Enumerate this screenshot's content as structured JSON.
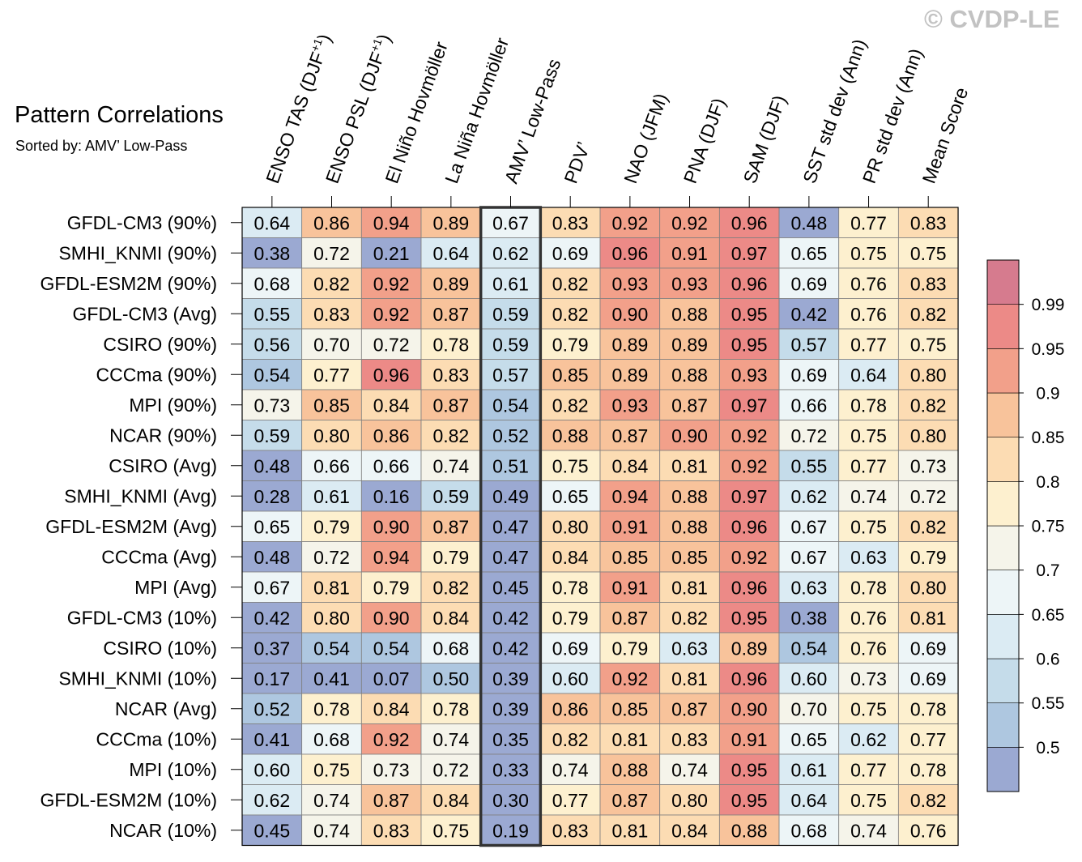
{
  "copyright": "© CVDP-LE",
  "chart_data": {
    "type": "heatmap",
    "title": "Pattern Correlations",
    "subtitle": "Sorted by: AMV’ Low-Pass",
    "highlight_column": "AMV’ Low-Pass",
    "columns": [
      {
        "text": "ENSO TAS (DJF",
        "sup": "+1",
        "tail": ")"
      },
      {
        "text": "ENSO PSL (DJF",
        "sup": "+1",
        "tail": ")"
      },
      {
        "text": "El Niño Hovmöller",
        "sup": "",
        "tail": ""
      },
      {
        "text": "La Niña Hovmöller",
        "sup": "",
        "tail": ""
      },
      {
        "text": "AMV’ Low-Pass",
        "sup": "",
        "tail": ""
      },
      {
        "text": "PDV’",
        "sup": "",
        "tail": ""
      },
      {
        "text": "NAO (JFM)",
        "sup": "",
        "tail": ""
      },
      {
        "text": "PNA (DJF)",
        "sup": "",
        "tail": ""
      },
      {
        "text": "SAM (DJF)",
        "sup": "",
        "tail": ""
      },
      {
        "text": "SST std dev (Ann)",
        "sup": "",
        "tail": ""
      },
      {
        "text": "PR std dev (Ann)",
        "sup": "",
        "tail": ""
      },
      {
        "text": "Mean Score",
        "sup": "",
        "tail": ""
      }
    ],
    "rows": [
      "GFDL-CM3 (90%)",
      "SMHI_KNMI (90%)",
      "GFDL-ESM2M (90%)",
      "GFDL-CM3 (Avg)",
      "CSIRO (90%)",
      "CCCma (90%)",
      "MPI (90%)",
      "NCAR (90%)",
      "CSIRO (Avg)",
      "SMHI_KNMI (Avg)",
      "GFDL-ESM2M (Avg)",
      "CCCma (Avg)",
      "MPI (Avg)",
      "GFDL-CM3 (10%)",
      "CSIRO (10%)",
      "SMHI_KNMI (10%)",
      "NCAR (Avg)",
      "CCCma (10%)",
      "MPI (10%)",
      "GFDL-ESM2M (10%)",
      "NCAR (10%)"
    ],
    "values": [
      [
        "0.64",
        "0.86",
        "0.94",
        "0.89",
        "0.67",
        "0.83",
        "0.92",
        "0.92",
        "0.96",
        "0.48",
        "0.77",
        "0.83"
      ],
      [
        "0.38",
        "0.72",
        "0.21",
        "0.64",
        "0.62",
        "0.69",
        "0.96",
        "0.91",
        "0.97",
        "0.65",
        "0.75",
        "0.75"
      ],
      [
        "0.68",
        "0.82",
        "0.92",
        "0.89",
        "0.61",
        "0.82",
        "0.93",
        "0.93",
        "0.96",
        "0.69",
        "0.76",
        "0.83"
      ],
      [
        "0.55",
        "0.83",
        "0.92",
        "0.87",
        "0.59",
        "0.82",
        "0.90",
        "0.88",
        "0.95",
        "0.42",
        "0.76",
        "0.82"
      ],
      [
        "0.56",
        "0.70",
        "0.72",
        "0.78",
        "0.59",
        "0.79",
        "0.89",
        "0.89",
        "0.95",
        "0.57",
        "0.77",
        "0.75"
      ],
      [
        "0.54",
        "0.77",
        "0.96",
        "0.83",
        "0.57",
        "0.85",
        "0.89",
        "0.88",
        "0.93",
        "0.69",
        "0.64",
        "0.80"
      ],
      [
        "0.73",
        "0.85",
        "0.84",
        "0.87",
        "0.54",
        "0.82",
        "0.93",
        "0.87",
        "0.97",
        "0.66",
        "0.78",
        "0.82"
      ],
      [
        "0.59",
        "0.80",
        "0.86",
        "0.82",
        "0.52",
        "0.88",
        "0.87",
        "0.90",
        "0.92",
        "0.72",
        "0.75",
        "0.80"
      ],
      [
        "0.48",
        "0.66",
        "0.66",
        "0.74",
        "0.51",
        "0.75",
        "0.84",
        "0.81",
        "0.92",
        "0.55",
        "0.77",
        "0.73"
      ],
      [
        "0.28",
        "0.61",
        "0.16",
        "0.59",
        "0.49",
        "0.65",
        "0.94",
        "0.88",
        "0.97",
        "0.62",
        "0.74",
        "0.72"
      ],
      [
        "0.65",
        "0.79",
        "0.90",
        "0.87",
        "0.47",
        "0.80",
        "0.91",
        "0.88",
        "0.96",
        "0.67",
        "0.75",
        "0.82"
      ],
      [
        "0.48",
        "0.72",
        "0.94",
        "0.79",
        "0.47",
        "0.84",
        "0.85",
        "0.85",
        "0.92",
        "0.67",
        "0.63",
        "0.79"
      ],
      [
        "0.67",
        "0.81",
        "0.79",
        "0.82",
        "0.45",
        "0.78",
        "0.91",
        "0.81",
        "0.96",
        "0.63",
        "0.78",
        "0.80"
      ],
      [
        "0.42",
        "0.80",
        "0.90",
        "0.84",
        "0.42",
        "0.79",
        "0.87",
        "0.82",
        "0.95",
        "0.38",
        "0.76",
        "0.81"
      ],
      [
        "0.37",
        "0.54",
        "0.54",
        "0.68",
        "0.42",
        "0.69",
        "0.79",
        "0.63",
        "0.89",
        "0.54",
        "0.76",
        "0.69"
      ],
      [
        "0.17",
        "0.41",
        "0.07",
        "0.50",
        "0.39",
        "0.60",
        "0.92",
        "0.81",
        "0.96",
        "0.60",
        "0.73",
        "0.69"
      ],
      [
        "0.52",
        "0.78",
        "0.84",
        "0.78",
        "0.39",
        "0.86",
        "0.85",
        "0.87",
        "0.90",
        "0.70",
        "0.75",
        "0.78"
      ],
      [
        "0.41",
        "0.68",
        "0.92",
        "0.74",
        "0.35",
        "0.82",
        "0.81",
        "0.83",
        "0.91",
        "0.65",
        "0.62",
        "0.77"
      ],
      [
        "0.60",
        "0.75",
        "0.73",
        "0.72",
        "0.33",
        "0.74",
        "0.88",
        "0.74",
        "0.95",
        "0.61",
        "0.77",
        "0.78"
      ],
      [
        "0.62",
        "0.74",
        "0.87",
        "0.84",
        "0.30",
        "0.77",
        "0.87",
        "0.80",
        "0.95",
        "0.64",
        "0.75",
        "0.82"
      ],
      [
        "0.45",
        "0.74",
        "0.83",
        "0.75",
        "0.19",
        "0.83",
        "0.81",
        "0.84",
        "0.88",
        "0.68",
        "0.74",
        "0.76"
      ]
    ],
    "colorbar": {
      "levels": [
        0.5,
        0.55,
        0.6,
        0.65,
        0.7,
        0.75,
        0.8,
        0.85,
        0.9,
        0.95,
        0.99
      ],
      "tick_labels": [
        "0.5",
        "0.55",
        "0.6",
        "0.65",
        "0.7",
        "0.75",
        "0.8",
        "0.85",
        "0.9",
        "0.95",
        "0.99"
      ],
      "colors": [
        "#9ba9d2",
        "#aec7e0",
        "#c5dcea",
        "#dbebf3",
        "#edf5f7",
        "#f5f4ea",
        "#fdf0cf",
        "#fcdcb3",
        "#f8c39b",
        "#f2a08a",
        "#ec8a87",
        "#d67b8e"
      ],
      "placement": "right"
    }
  }
}
